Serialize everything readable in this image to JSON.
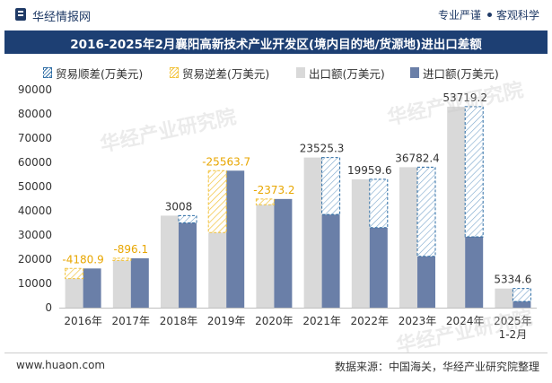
{
  "header": {
    "brand": "华经情报网",
    "slogan_left": "专业严谨",
    "slogan_right": "客观科学"
  },
  "title": "2016-2025年2月襄阳高新技术产业开发区(境内目的地/货源地)进出口差额",
  "legend": {
    "surplus": "贸易顺差(万美元)",
    "deficit": "贸易逆差(万美元)",
    "export": "出口额(万美元)",
    "import": "进口额(万美元)"
  },
  "colors": {
    "title_bg": "#1d3f73",
    "export": "#d9d9d9",
    "import": "#6a7fa8",
    "surplus_line": "#2f6ea5",
    "deficit_line": "#f2c23a",
    "deficit_label": "#e8a600",
    "surplus_label": "#333333"
  },
  "chart_data": {
    "type": "bar",
    "categories": [
      "2016年",
      "2017年",
      "2018年",
      "2019年",
      "2020年",
      "2021年",
      "2022年",
      "2023年",
      "2024年",
      "2025年\n1-2月"
    ],
    "ylim": [
      0,
      90000
    ],
    "yticks": [
      "0",
      "10000",
      "20000",
      "30000",
      "40000",
      "50000",
      "60000",
      "70000",
      "80000",
      "90000"
    ],
    "series": [
      {
        "name": "出口额(万美元)",
        "values": [
          12000,
          19500,
          38000,
          31000,
          42500,
          62000,
          53000,
          58000,
          83000,
          7900
        ]
      },
      {
        "name": "进口额(万美元)",
        "values": [
          16180.9,
          20396.1,
          34992,
          56563.7,
          44873.2,
          38474.7,
          33040.4,
          21217.6,
          29280.8,
          2565.4
        ]
      }
    ],
    "balance": {
      "values": [
        -4180.9,
        -896.1,
        3008,
        -25563.7,
        -2373.2,
        23525.3,
        19959.6,
        36782.4,
        53719.2,
        5334.6
      ],
      "labels": [
        "-4180.9",
        "-896.1",
        "3008",
        "-25563.7",
        "-2373.2",
        "23525.3",
        "19959.6",
        "36782.4",
        "53719.2",
        "5334.6"
      ]
    }
  },
  "footer": {
    "website": "www.huaon.com",
    "source": "数据来源：中国海关，华经产业研究院整理"
  },
  "watermark": "华经产业研究院"
}
